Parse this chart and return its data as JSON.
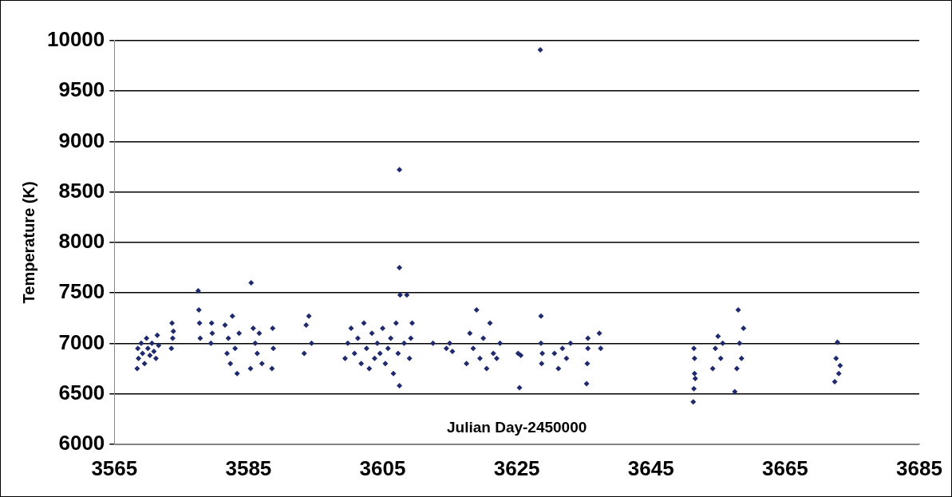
{
  "chart_data": {
    "type": "scatter",
    "ylabel": "Temperature (K)",
    "annotations": [
      "Julian Day-2450000"
    ],
    "xlim": [
      3565,
      3685
    ],
    "xticks": [
      3565,
      3585,
      3605,
      3625,
      3645,
      3665,
      3685
    ],
    "ylim": [
      6000,
      10000
    ],
    "yticks": [
      6000,
      6500,
      7000,
      7500,
      8000,
      8500,
      9000,
      9500,
      10000
    ],
    "grid": "y",
    "marker": "diamond",
    "series": [
      {
        "color": "#1f2a6e",
        "x": [
          3568.4,
          3568.5,
          3568.6,
          3569,
          3569.2,
          3569.5,
          3569.8,
          3570,
          3570.3,
          3570.6,
          3570.9,
          3571.2,
          3571.4,
          3571.6,
          3573.5,
          3573.6,
          3573.7,
          3573.8,
          3577.5,
          3577.6,
          3577.7,
          3577.8,
          3579.4,
          3579.5,
          3579.6,
          3581.5,
          3581.8,
          3582,
          3582.3,
          3582.6,
          3583,
          3583.3,
          3583.6,
          3585.4,
          3585.3,
          3585.7,
          3586,
          3586.3,
          3586.6,
          3587,
          3588.5,
          3588.6,
          3588.7,
          3593.3,
          3593.6,
          3594,
          3594.4,
          3599.4,
          3599.8,
          3600.3,
          3600.8,
          3601.3,
          3601.8,
          3602.2,
          3602.6,
          3603,
          3603.4,
          3603.8,
          3604.2,
          3604.6,
          3605,
          3605.4,
          3605.8,
          3606.2,
          3606.6,
          3607,
          3607.3,
          3607.5,
          3607.5,
          3607.6,
          3607.5,
          3608.2,
          3608.6,
          3609,
          3609.4,
          3609.2,
          3612.5,
          3614.5,
          3615,
          3615.4,
          3617.5,
          3618,
          3618.5,
          3619,
          3619.5,
          3620,
          3620.5,
          3621,
          3621.5,
          3622,
          3622.5,
          3625.2,
          3625.4,
          3625.6,
          3628.5,
          3628.6,
          3628.6,
          3628.7,
          3628.8,
          3630.6,
          3631.2,
          3631.8,
          3632.4,
          3633,
          3635.4,
          3635.5,
          3635.6,
          3635.6,
          3637.3,
          3637.5,
          3651.3,
          3651.4,
          3651.4,
          3651.5,
          3651.5,
          3651.6,
          3654.2,
          3654.6,
          3655,
          3655.4,
          3655.7,
          3657.5,
          3657.8,
          3658,
          3658.2,
          3658.5,
          3658.8,
          3672.4,
          3672.6,
          3672.8,
          3673,
          3673.2
        ],
        "values": [
          6750,
          6950,
          6850,
          7000,
          6900,
          6800,
          7050,
          6950,
          6880,
          7000,
          6920,
          6850,
          7080,
          6980,
          6950,
          7200,
          7050,
          7120,
          7520,
          7330,
          7200,
          7050,
          7000,
          7200,
          7100,
          7180,
          6900,
          7050,
          6800,
          7270,
          6950,
          6700,
          7100,
          7600,
          6750,
          7150,
          7000,
          6900,
          7100,
          6800,
          6750,
          7150,
          6950,
          6900,
          7180,
          7270,
          7000,
          6850,
          7000,
          7150,
          6900,
          7050,
          6800,
          7200,
          6950,
          6750,
          7100,
          6850,
          7000,
          6900,
          7150,
          6800,
          6950,
          7050,
          6700,
          7200,
          6900,
          8720,
          7750,
          7480,
          6580,
          7000,
          7480,
          6850,
          7200,
          7050,
          7000,
          6950,
          7000,
          6920,
          6800,
          7100,
          6950,
          7330,
          6850,
          7050,
          6750,
          7200,
          6900,
          6850,
          7000,
          6900,
          6560,
          6880,
          9910,
          7270,
          7000,
          6800,
          6900,
          6900,
          6750,
          6950,
          6850,
          7000,
          6600,
          6800,
          7050,
          6950,
          7100,
          6950,
          6420,
          6950,
          6550,
          6700,
          6850,
          6650,
          6750,
          6950,
          7070,
          6850,
          7000,
          6520,
          6750,
          7330,
          7000,
          6850,
          7150,
          6620,
          6850,
          7010,
          6700,
          6780
        ]
      }
    ]
  }
}
